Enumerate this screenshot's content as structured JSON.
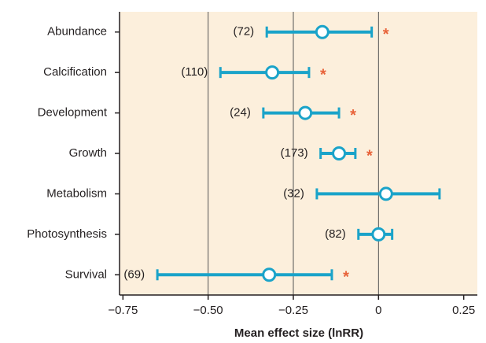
{
  "chart_data": {
    "type": "forest",
    "x_label": "Mean effect size (lnRR)",
    "categories": [
      "Abundance",
      "Calcification",
      "Development",
      "Growth",
      "Metabolism",
      "Photosynthesis",
      "Survival"
    ],
    "values": [
      -0.165,
      -0.312,
      -0.215,
      -0.116,
      0.022,
      0,
      -0.321
    ],
    "lower": [
      -0.328,
      -0.464,
      -0.338,
      -0.17,
      -0.181,
      -0.059,
      -0.649
    ],
    "upper": [
      -0.02,
      -0.204,
      -0.116,
      -0.068,
      0.179,
      0.04,
      -0.137
    ],
    "n_labels": [
      "(72)",
      "(110)",
      "(24)",
      "(173)",
      "(32)",
      "(82)",
      "(69)"
    ],
    "significance": [
      "*",
      "*",
      "*",
      "*",
      null,
      null,
      "*"
    ],
    "color": "#1aa3c9",
    "significance_color": "#e8633a",
    "background": "#fcefdc",
    "xlim": [
      -0.76,
      0.29
    ],
    "xticks": [
      {
        "value": -0.75,
        "label": "−0.75"
      },
      {
        "value": -0.5,
        "label": "−0.50"
      },
      {
        "value": -0.25,
        "label": "−0.25"
      },
      0,
      0.25
    ],
    "grid_x": [
      -0.5,
      -0.25,
      0
    ]
  }
}
